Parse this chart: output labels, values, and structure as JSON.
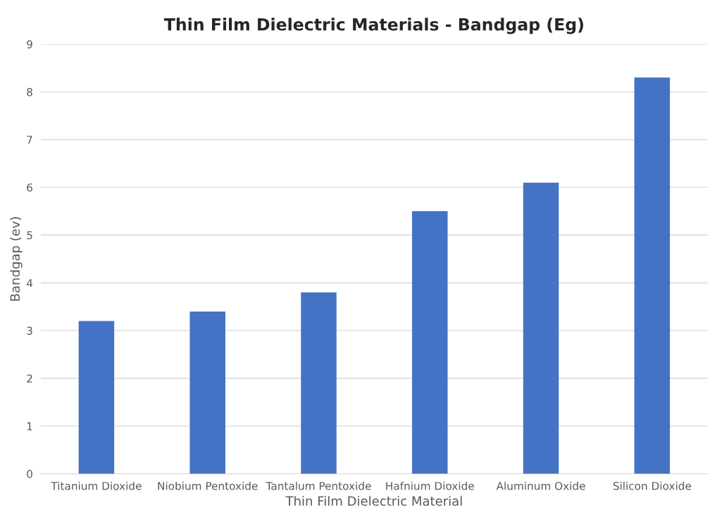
{
  "chart_data": {
    "type": "bar",
    "title": "Thin Film Dielectric Materials - Bandgap (Eg)",
    "xlabel": "Thin Film Dielectric Material",
    "ylabel": "Bandgap (ev)",
    "categories": [
      "Titanium Dioxide",
      "Niobium Pentoxide",
      "Tantalum Pentoxide",
      "Hafnium Dioxide",
      "Aluminum Oxide",
      "Silicon Dioxide"
    ],
    "values": [
      3.2,
      3.4,
      3.8,
      5.5,
      6.1,
      8.3
    ],
    "color": "#4472c4",
    "ylim": [
      0,
      9
    ],
    "yticks": [
      0,
      1,
      2,
      3,
      4,
      5,
      6,
      7,
      8,
      9
    ],
    "grid": "y"
  }
}
